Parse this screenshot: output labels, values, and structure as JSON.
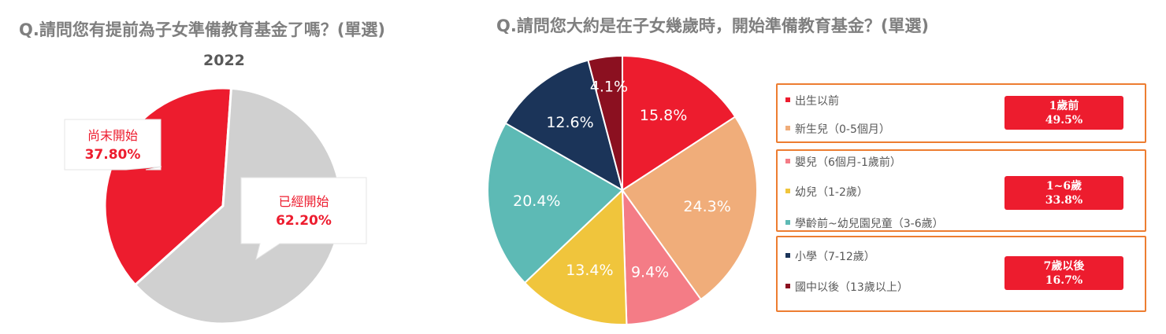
{
  "chart_data": [
    {
      "type": "pie",
      "title": "Q.請問您有提前為子女準備教育基金了嗎？(單選)",
      "subtitle": "2022",
      "categories": [
        "尚末開始",
        "已經開始"
      ],
      "values": [
        37.8,
        62.2
      ],
      "value_labels": [
        "37.80%",
        "62.20%"
      ],
      "colors": [
        "#ed1c2e",
        "#d0d0d0"
      ]
    },
    {
      "type": "pie",
      "title": "Q.請問您大約是在子女幾歲時，開始準備教育基金？(單選)",
      "categories": [
        "出生以前",
        "新生兒（0-5個月）",
        "嬰兒（6個月-1歲前）",
        "幼兒（1-2歲）",
        "學齡前~幼兒園兒童（3-6歲）",
        "小學（7-12歲）",
        "國中以後（13歲以上）"
      ],
      "values": [
        15.8,
        24.3,
        9.4,
        13.4,
        20.4,
        12.6,
        4.1
      ],
      "value_labels": [
        "15.8%",
        "24.3%",
        "9.4%",
        "13.4%",
        "20.4%",
        "12.6%",
        "4.1%"
      ],
      "colors": [
        "#ed1c2e",
        "#f0ad7a",
        "#f47c86",
        "#f0c53c",
        "#5dbab5",
        "#1b3459",
        "#8b1020"
      ],
      "groups": [
        {
          "label": "1歲前",
          "value": "49.5%"
        },
        {
          "label": "1~6歲",
          "value": "33.8%"
        },
        {
          "label": "7歲以後",
          "value": "16.7%"
        }
      ]
    }
  ]
}
